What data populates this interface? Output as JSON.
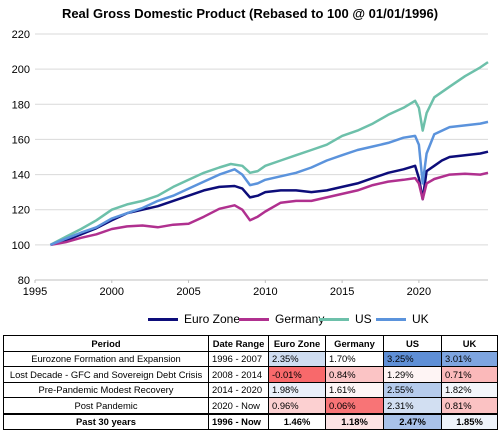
{
  "chart_data": {
    "type": "line",
    "title": "Real Gross Domestic Product (Rebased to 100 @ 01/01/1996)",
    "ylim": [
      80,
      220
    ],
    "yticks": [
      80,
      100,
      120,
      140,
      160,
      180,
      200,
      220
    ],
    "xlim": [
      1995,
      2024.5
    ],
    "xticks": [
      1995,
      2000,
      2005,
      2010,
      2015,
      2020
    ],
    "grid": true,
    "legend": "bottom",
    "series": [
      {
        "name": "Euro Zone",
        "color": "#0d0d7a",
        "x": [
          1996,
          1997,
          1998,
          1999,
          2000,
          2001,
          2002,
          2003,
          2004,
          2005,
          2006,
          2007,
          2008,
          2008.5,
          2009,
          2009.5,
          2010,
          2011,
          2011.5,
          2012,
          2013,
          2014,
          2015,
          2016,
          2017,
          2018,
          2019,
          2019.75,
          2020,
          2020.25,
          2020.5,
          2021,
          2021.5,
          2022,
          2023,
          2024,
          2024.5
        ],
        "y": [
          100,
          102.5,
          106,
          109.5,
          114,
          118,
          120,
          122,
          125,
          128,
          131,
          133,
          133.5,
          132,
          127,
          128,
          130,
          131,
          131,
          131,
          130,
          131,
          133,
          135,
          138,
          141,
          143,
          145,
          138,
          126,
          142,
          145,
          148,
          150,
          151,
          152,
          153
        ]
      },
      {
        "name": "Germany",
        "color": "#b0308f",
        "x": [
          1996,
          1997,
          1998,
          1999,
          2000,
          2001,
          2002,
          2003,
          2004,
          2005,
          2006,
          2007,
          2008,
          2008.5,
          2009,
          2009.5,
          2010,
          2011,
          2012,
          2013,
          2014,
          2015,
          2016,
          2017,
          2018,
          2019,
          2019.75,
          2020,
          2020.25,
          2020.5,
          2021,
          2022,
          2023,
          2024,
          2024.5
        ],
        "y": [
          100,
          101.5,
          104,
          106,
          109,
          110.5,
          111,
          110,
          111.5,
          112,
          116,
          120.5,
          122.5,
          120,
          114,
          116,
          119,
          124,
          125,
          125,
          127,
          129,
          131,
          134,
          136,
          137,
          138,
          135,
          126,
          135,
          137.5,
          140,
          140.5,
          140,
          141
        ]
      },
      {
        "name": "US",
        "color": "#6dc0aa",
        "x": [
          1996,
          1997,
          1998,
          1999,
          2000,
          2001,
          2002,
          2003,
          2004,
          2005,
          2006,
          2007,
          2007.75,
          2008.5,
          2009,
          2009.5,
          2010,
          2011,
          2012,
          2013,
          2014,
          2015,
          2016,
          2017,
          2018,
          2019,
          2019.75,
          2020,
          2020.25,
          2020.5,
          2021,
          2022,
          2023,
          2024,
          2024.5
        ],
        "y": [
          100,
          104.5,
          109,
          114,
          120,
          123,
          125,
          128,
          133,
          137,
          141,
          144,
          146,
          145,
          141,
          142,
          145,
          148,
          151,
          154,
          157,
          162,
          165,
          169,
          174,
          178,
          182,
          178,
          165,
          175,
          184,
          190,
          196,
          201,
          204
        ]
      },
      {
        "name": "UK",
        "color": "#5b93dc",
        "x": [
          1996,
          1997,
          1998,
          1999,
          2000,
          2001,
          2002,
          2003,
          2004,
          2005,
          2006,
          2007,
          2008,
          2008.5,
          2009,
          2009.5,
          2010,
          2011,
          2012,
          2013,
          2014,
          2015,
          2016,
          2017,
          2018,
          2019,
          2019.75,
          2020,
          2020.25,
          2020.5,
          2021,
          2022,
          2023,
          2024,
          2024.5
        ],
        "y": [
          100,
          103.5,
          107,
          110,
          115,
          118,
          121,
          125,
          128,
          132,
          136,
          140,
          143,
          140,
          134,
          135,
          137,
          139,
          141,
          144,
          148,
          151,
          154,
          156,
          158,
          161,
          162,
          157,
          135,
          152,
          163,
          167,
          168,
          169,
          170
        ]
      }
    ]
  },
  "table": {
    "headers": [
      "Period",
      "Date Range",
      "Euro Zone",
      "Germany",
      "US",
      "UK"
    ],
    "rows": [
      {
        "period": "Eurozone Formation and Expansion",
        "range": "1996 - 2007",
        "values": [
          "2.35%",
          "1.70%",
          "3.25%",
          "3.01%"
        ],
        "colors": [
          "#cfddf1",
          "#ffffff",
          "#5f8fd6",
          "#7ea5e0"
        ]
      },
      {
        "period": "Lost Decade - GFC and Sovereign Debt Crisis",
        "range": "2008 - 2014",
        "values": [
          "-0.01%",
          "0.84%",
          "1.29%",
          "0.71%"
        ],
        "colors": [
          "#f8696b",
          "#fbc4c5",
          "#fef4f4",
          "#fbb9ba"
        ]
      },
      {
        "period": "Pre-Pandemic Modest Recovery",
        "range": "2014 - 2020",
        "values": [
          "1.98%",
          "1.61%",
          "2.55%",
          "1.82%"
        ],
        "colors": [
          "#e9eff9",
          "#fdf6f6",
          "#b5cbec",
          "#f3f6fb"
        ]
      },
      {
        "period": "Post Pandemic",
        "range": "2020 - Now",
        "values": [
          "0.96%",
          "0.06%",
          "2.31%",
          "0.81%"
        ],
        "colors": [
          "#fcd0d1",
          "#f87476",
          "#d2dff2",
          "#fbc2c3"
        ]
      }
    ],
    "total": {
      "period": "Past 30 years",
      "range": "1996 - Now",
      "values": [
        "1.46%",
        "1.18%",
        "2.47%",
        "1.85%"
      ],
      "colors": [
        "#ffffff",
        "#fce3e4",
        "#a9c2e9",
        "#eef3fa"
      ]
    }
  }
}
